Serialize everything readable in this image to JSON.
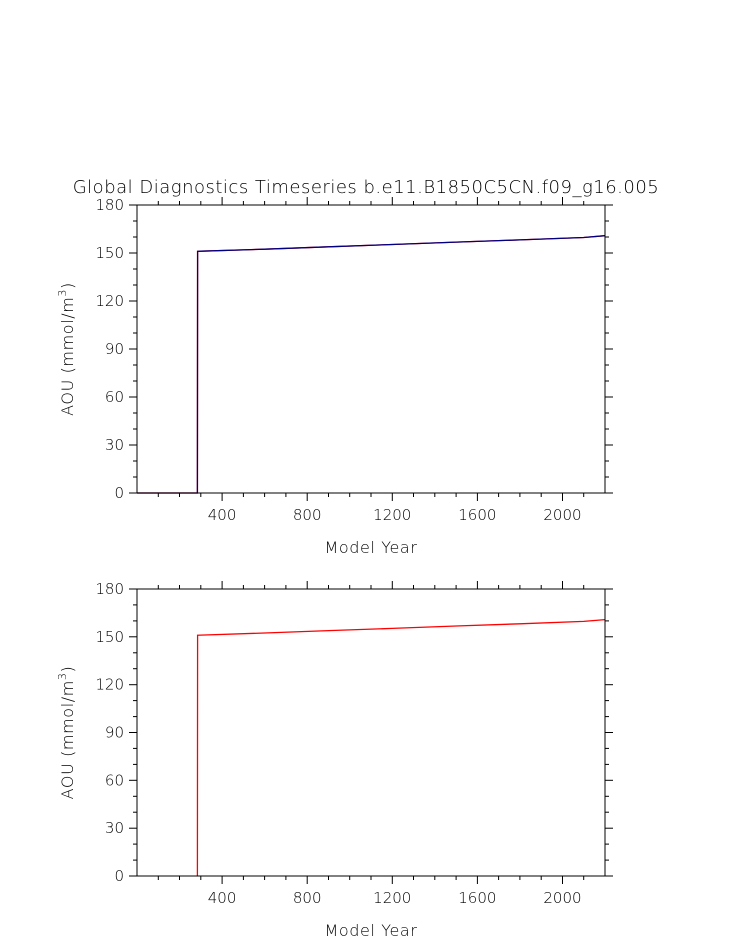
{
  "figure": {
    "title": "Global Diagnostics Timeseries b.e11.B1850C5CN.f09_g16.005"
  },
  "chart_data": [
    {
      "type": "line",
      "title": "Global Diagnostics Timeseries b.e11.B1850C5CN.f09_g16.005",
      "xlabel": "Model Year",
      "ylabel_prefix": "AOU (mmol/m",
      "ylabel_sup": "3",
      "ylabel_suffix": ")",
      "xlim": [
        0,
        2200
      ],
      "ylim": [
        0,
        180
      ],
      "x_ticks": [
        400,
        800,
        1200,
        1600,
        2000
      ],
      "y_ticks": [
        0,
        30,
        60,
        90,
        120,
        150,
        180
      ],
      "grid": false,
      "series": [
        {
          "color": "#ff0000",
          "x": [
            0,
            284,
            285,
            300,
            600,
            900,
            1200,
            1500,
            1800,
            2100,
            2200
          ],
          "y": [
            0,
            0,
            151,
            151.1,
            152.4,
            153.9,
            155.3,
            156.8,
            158.2,
            159.7,
            160.8
          ]
        },
        {
          "color": "#000080",
          "x": [
            0,
            284,
            285,
            300,
            600,
            900,
            1200,
            1500,
            1800,
            2100,
            2200
          ],
          "y": [
            0,
            0,
            151,
            151.1,
            152.4,
            153.9,
            155.3,
            156.8,
            158.2,
            159.7,
            160.8
          ]
        }
      ]
    },
    {
      "type": "line",
      "xlabel": "Model Year",
      "ylabel_prefix": "AOU (mmol/m",
      "ylabel_sup": "3",
      "ylabel_suffix": ")",
      "xlim": [
        0,
        2200
      ],
      "ylim": [
        0,
        180
      ],
      "x_ticks": [
        400,
        800,
        1200,
        1600,
        2000
      ],
      "y_ticks": [
        0,
        30,
        60,
        90,
        120,
        150,
        180
      ],
      "grid": false,
      "series": [
        {
          "color": "#ff0000",
          "x": [
            284,
            285,
            300,
            600,
            900,
            1200,
            1500,
            1800,
            2100,
            2200
          ],
          "y": [
            0,
            151,
            151.1,
            152.4,
            153.9,
            155.3,
            156.8,
            158.2,
            159.7,
            160.8
          ]
        }
      ]
    }
  ]
}
